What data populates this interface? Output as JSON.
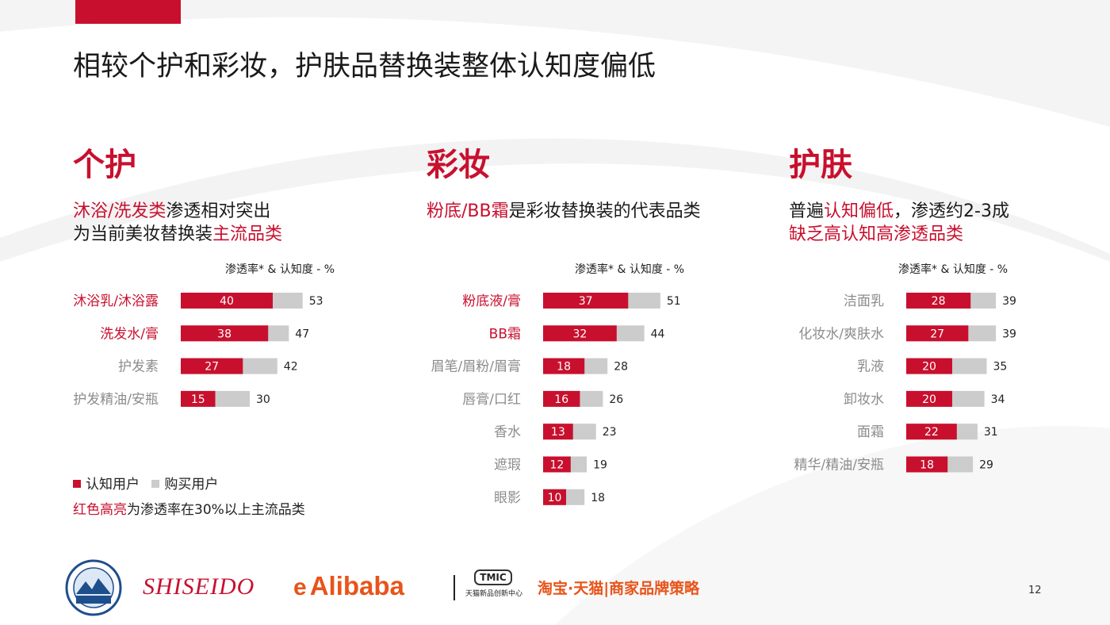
{
  "title": "相较个护和彩妆，护肤品替换装整体认知度偏低",
  "sections": [
    {
      "heading": "个护",
      "desc_lines": [
        [
          {
            "t": "沐浴/洗发类",
            "hl": true
          },
          {
            "t": "渗透相对突出",
            "hl": false
          }
        ],
        [
          {
            "t": "为当前美妆替换装",
            "hl": false
          },
          {
            "t": "主流品类",
            "hl": true
          }
        ]
      ]
    },
    {
      "heading": "彩妆",
      "desc_lines": [
        [
          {
            "t": "粉底/BB霜",
            "hl": true
          },
          {
            "t": "是彩妆替换装的代表品类",
            "hl": false
          }
        ]
      ]
    },
    {
      "heading": "护肤",
      "desc_lines": [
        [
          {
            "t": "普遍",
            "hl": false
          },
          {
            "t": "认知偏低",
            "hl": true
          },
          {
            "t": "，渗透约2-3成",
            "hl": false
          }
        ],
        [
          {
            "t": "缺乏高认知高渗透品类",
            "hl": true
          }
        ]
      ]
    }
  ],
  "chart_header": "渗透率* & 认知度 - %",
  "legend": {
    "aware": "认知用户",
    "purchase": "购买用户"
  },
  "note": {
    "highlight": "红色高亮",
    "rest": "为渗透率在30%以上主流品类"
  },
  "colors": {
    "brand_red": "#c8102e",
    "gray_bar": "#cccccc",
    "label_gray": "#8c8c8c",
    "orange": "#e8541a"
  },
  "chart_data": [
    {
      "type": "bar",
      "orientation": "horizontal",
      "stacked": false,
      "categories": [
        "沐浴乳/沐浴露",
        "洗发水/膏",
        "护发素",
        "护发精油/安瓶"
      ],
      "highlighted": [
        true,
        true,
        false,
        false
      ],
      "series": [
        {
          "name": "认知用户",
          "values": [
            40,
            38,
            27,
            15
          ]
        },
        {
          "name": "购买用户",
          "values": [
            53,
            47,
            42,
            30
          ]
        }
      ],
      "grid": false
    },
    {
      "type": "bar",
      "orientation": "horizontal",
      "stacked": false,
      "categories": [
        "粉底液/膏",
        "BB霜",
        "眉笔/眉粉/眉膏",
        "唇膏/口红",
        "香水",
        "遮瑕",
        "眼影"
      ],
      "highlighted": [
        true,
        true,
        false,
        false,
        false,
        false,
        false
      ],
      "series": [
        {
          "name": "认知用户",
          "values": [
            37,
            32,
            18,
            16,
            13,
            12,
            10
          ]
        },
        {
          "name": "购买用户",
          "values": [
            51,
            44,
            28,
            26,
            23,
            19,
            18
          ]
        }
      ],
      "grid": false
    },
    {
      "type": "bar",
      "orientation": "horizontal",
      "stacked": false,
      "categories": [
        "洁面乳",
        "化妆水/爽肤水",
        "乳液",
        "卸妆水",
        "面霜",
        "精华/精油/安瓶"
      ],
      "highlighted": [
        false,
        false,
        false,
        false,
        false,
        false
      ],
      "series": [
        {
          "name": "认知用户",
          "values": [
            28,
            27,
            20,
            20,
            22,
            18
          ]
        },
        {
          "name": "购买用户",
          "values": [
            39,
            39,
            35,
            34,
            31,
            29
          ]
        }
      ],
      "grid": false
    }
  ],
  "footer": {
    "shiseido": "SHISEIDO",
    "alibaba": "Alibaba",
    "tmic_badge": "TMIC",
    "tmic_sub": "天猫新品创新中心",
    "taobao": "淘宝·天猫|商家品牌策略"
  },
  "page_number": "12"
}
